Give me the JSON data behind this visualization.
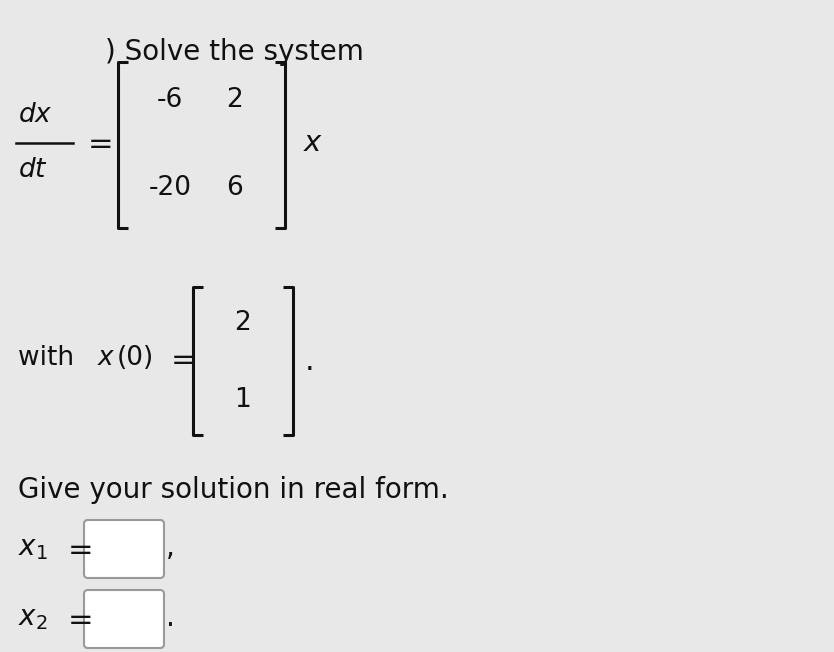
{
  "background_color": "#e8e8e8",
  "title_text": ") Solve the system",
  "font_color": "#111111",
  "bracket_color": "#111111",
  "matrix_entries": [
    "-6",
    "2",
    "-20",
    "6"
  ],
  "ic_entries": [
    "2",
    "1"
  ],
  "give_text": "Give your solution in real form."
}
